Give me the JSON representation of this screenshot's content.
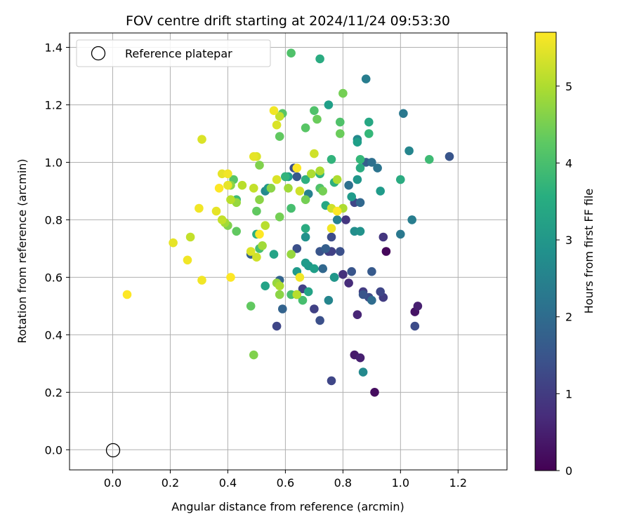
{
  "chart_data": {
    "type": "scatter",
    "title": "FOV centre drift starting at 2024/11/24 09:53:30",
    "xlabel": "Angular distance from reference (arcmin)",
    "ylabel": "Rotation from reference (arcmin)",
    "xlim": [
      -0.15,
      1.37
    ],
    "ylim": [
      -0.07,
      1.45
    ],
    "xticks": [
      "0.0",
      "0.2",
      "0.4",
      "0.6",
      "0.8",
      "1.0",
      "1.2"
    ],
    "yticks": [
      "0.0",
      "0.2",
      "0.4",
      "0.6",
      "0.8",
      "1.0",
      "1.2",
      "1.4"
    ],
    "grid": true,
    "legend": {
      "position": "top-left",
      "label": "Reference platepar"
    },
    "reference_point": {
      "x": 0.0,
      "y": 0.0
    },
    "colorbar": {
      "label": "Hours from first FF file",
      "min": 0,
      "max": 5.7,
      "ticks": [
        "0",
        "1",
        "2",
        "3",
        "4",
        "5"
      ],
      "colormap": "viridis"
    },
    "series": [
      {
        "points": [
          [
            0.95,
            0.69,
            0.1
          ],
          [
            0.91,
            0.2,
            0.2
          ],
          [
            1.05,
            0.48,
            0.3
          ],
          [
            0.84,
            0.33,
            0.4
          ],
          [
            0.86,
            0.32,
            0.5
          ],
          [
            1.06,
            0.5,
            0.5
          ],
          [
            0.85,
            0.47,
            0.6
          ],
          [
            0.82,
            0.58,
            0.7
          ],
          [
            0.8,
            0.61,
            0.8
          ],
          [
            0.94,
            0.74,
            0.9
          ],
          [
            0.81,
            0.8,
            0.9
          ],
          [
            0.75,
            0.69,
            1.0
          ],
          [
            0.87,
            0.55,
            1.0
          ],
          [
            0.94,
            0.53,
            1.0
          ],
          [
            0.76,
            0.69,
            1.1
          ],
          [
            0.7,
            0.49,
            1.1
          ],
          [
            0.66,
            0.56,
            1.1
          ],
          [
            0.76,
            0.24,
            1.2
          ],
          [
            0.93,
            0.55,
            1.2
          ],
          [
            0.84,
            0.86,
            1.2
          ],
          [
            0.57,
            0.43,
            1.2
          ],
          [
            0.89,
            0.53,
            1.3
          ],
          [
            0.76,
            0.74,
            1.3
          ],
          [
            1.05,
            0.43,
            1.3
          ],
          [
            0.72,
            0.45,
            1.4
          ],
          [
            0.64,
            0.7,
            1.4
          ],
          [
            0.63,
            0.98,
            1.4
          ],
          [
            0.79,
            0.69,
            1.4
          ],
          [
            0.72,
            0.69,
            1.5
          ],
          [
            0.83,
            0.62,
            1.5
          ],
          [
            0.87,
            0.54,
            1.5
          ],
          [
            1.17,
            1.02,
            1.5
          ],
          [
            0.9,
            0.62,
            1.6
          ],
          [
            0.64,
            0.95,
            1.6
          ],
          [
            0.48,
            0.68,
            1.7
          ],
          [
            0.88,
            1.0,
            1.7
          ],
          [
            0.74,
            0.7,
            1.7
          ],
          [
            0.58,
            0.59,
            1.8
          ],
          [
            0.59,
            0.49,
            1.8
          ],
          [
            0.77,
            0.6,
            1.9
          ],
          [
            0.73,
            0.63,
            1.9
          ],
          [
            0.86,
            0.86,
            1.9
          ],
          [
            0.9,
            0.52,
            2.0
          ],
          [
            0.82,
            0.92,
            2.1
          ],
          [
            0.9,
            1.0,
            2.1
          ],
          [
            0.92,
            0.98,
            2.2
          ],
          [
            1.0,
            0.75,
            2.3
          ],
          [
            1.01,
            1.17,
            2.3
          ],
          [
            0.88,
            1.29,
            2.4
          ],
          [
            1.04,
            0.8,
            2.4
          ],
          [
            0.78,
            0.8,
            2.5
          ],
          [
            0.68,
            0.89,
            2.5
          ],
          [
            1.03,
            1.04,
            2.6
          ],
          [
            0.75,
            0.52,
            2.6
          ],
          [
            0.85,
            1.08,
            2.7
          ],
          [
            0.53,
            0.9,
            2.7
          ],
          [
            0.87,
            0.27,
            2.7
          ],
          [
            0.84,
            0.76,
            2.8
          ],
          [
            0.64,
            0.54,
            2.8
          ],
          [
            0.67,
            0.74,
            2.9
          ],
          [
            0.6,
            0.95,
            2.9
          ],
          [
            0.86,
            0.76,
            2.9
          ],
          [
            0.77,
            0.6,
            3.0
          ],
          [
            0.54,
            0.91,
            3.0
          ],
          [
            0.68,
            0.64,
            3.0
          ],
          [
            0.85,
            0.94,
            3.0
          ],
          [
            0.67,
            0.65,
            3.1
          ],
          [
            0.93,
            0.9,
            3.1
          ],
          [
            0.83,
            0.88,
            3.1
          ],
          [
            0.64,
            0.62,
            3.1
          ],
          [
            0.61,
            0.95,
            3.2
          ],
          [
            0.75,
            1.2,
            3.2
          ],
          [
            0.7,
            0.63,
            3.2
          ],
          [
            0.85,
            1.07,
            3.2
          ],
          [
            0.56,
            0.68,
            3.3
          ],
          [
            0.68,
            0.55,
            3.3
          ],
          [
            0.53,
            0.57,
            3.3
          ],
          [
            0.74,
            0.85,
            3.4
          ],
          [
            0.89,
            1.14,
            3.4
          ],
          [
            0.72,
            1.36,
            3.5
          ],
          [
            1.0,
            0.94,
            3.5
          ],
          [
            0.86,
            0.98,
            3.5
          ],
          [
            0.67,
            0.77,
            3.5
          ],
          [
            0.5,
            0.75,
            3.6
          ],
          [
            0.77,
            0.93,
            3.6
          ],
          [
            0.67,
            0.94,
            3.6
          ],
          [
            0.72,
            0.96,
            3.7
          ],
          [
            0.6,
            0.95,
            3.7
          ],
          [
            0.76,
            1.01,
            3.7
          ],
          [
            0.86,
            1.01,
            3.8
          ],
          [
            0.89,
            1.1,
            3.8
          ],
          [
            0.43,
            0.87,
            3.9
          ],
          [
            1.1,
            1.01,
            3.9
          ],
          [
            0.66,
            0.52,
            4.0
          ],
          [
            0.51,
            0.7,
            4.0
          ],
          [
            0.62,
            0.54,
            4.0
          ],
          [
            0.62,
            0.84,
            4.0
          ],
          [
            0.62,
            1.38,
            4.1
          ],
          [
            0.7,
            1.18,
            4.1
          ],
          [
            0.79,
            1.14,
            4.1
          ],
          [
            0.72,
            0.91,
            4.1
          ],
          [
            0.59,
            1.17,
            4.2
          ],
          [
            0.42,
            0.94,
            4.2
          ],
          [
            0.67,
            1.12,
            4.2
          ],
          [
            0.58,
            1.09,
            4.3
          ],
          [
            0.43,
            0.76,
            4.3
          ],
          [
            0.48,
            0.5,
            4.3
          ],
          [
            0.5,
            0.83,
            4.3
          ],
          [
            0.71,
            1.15,
            4.4
          ],
          [
            0.79,
            1.1,
            4.4
          ],
          [
            0.67,
            0.87,
            4.5
          ],
          [
            0.73,
            0.9,
            4.5
          ],
          [
            0.58,
            0.81,
            4.5
          ],
          [
            0.8,
            1.24,
            4.5
          ],
          [
            0.49,
            0.33,
            4.6
          ],
          [
            0.4,
            0.78,
            4.6
          ],
          [
            0.51,
            0.99,
            4.6
          ],
          [
            0.55,
            0.91,
            4.7
          ],
          [
            0.41,
            0.92,
            4.7
          ],
          [
            0.58,
            0.54,
            4.7
          ],
          [
            0.51,
            0.87,
            4.7
          ],
          [
            0.62,
            0.68,
            4.8
          ],
          [
            0.57,
            0.58,
            4.8
          ],
          [
            0.43,
            0.86,
            4.8
          ],
          [
            0.52,
            0.71,
            4.9
          ],
          [
            0.61,
            0.91,
            4.9
          ],
          [
            0.39,
            0.79,
            4.9
          ],
          [
            0.78,
            0.94,
            5.0
          ],
          [
            0.69,
            0.96,
            5.0
          ],
          [
            0.58,
            0.57,
            5.0
          ],
          [
            0.72,
            0.97,
            5.0
          ],
          [
            0.8,
            0.84,
            5.0
          ],
          [
            0.64,
            0.54,
            5.1
          ],
          [
            0.41,
            0.87,
            5.1
          ],
          [
            0.53,
            0.78,
            5.1
          ],
          [
            0.45,
            0.92,
            5.1
          ],
          [
            0.38,
            0.8,
            5.2
          ],
          [
            0.58,
            1.16,
            5.2
          ],
          [
            0.27,
            0.74,
            5.2
          ],
          [
            0.49,
            0.91,
            5.2
          ],
          [
            0.5,
            0.67,
            5.3
          ],
          [
            0.76,
            0.84,
            5.3
          ],
          [
            0.7,
            1.03,
            5.3
          ],
          [
            0.65,
            0.9,
            5.3
          ],
          [
            0.48,
            0.69,
            5.4
          ],
          [
            0.57,
            1.13,
            5.4
          ],
          [
            0.31,
            1.08,
            5.4
          ],
          [
            0.5,
            1.02,
            5.4
          ],
          [
            0.57,
            0.94,
            5.4
          ],
          [
            0.38,
            0.96,
            5.5
          ],
          [
            0.36,
            0.83,
            5.5
          ],
          [
            0.4,
            0.92,
            5.5
          ],
          [
            0.49,
            1.02,
            5.5
          ],
          [
            0.21,
            0.72,
            5.5
          ],
          [
            0.3,
            0.84,
            5.6
          ],
          [
            0.31,
            0.59,
            5.6
          ],
          [
            0.56,
            1.18,
            5.6
          ],
          [
            0.26,
            0.66,
            5.6
          ],
          [
            0.76,
            0.77,
            5.6
          ],
          [
            0.65,
            0.6,
            5.6
          ],
          [
            0.4,
            0.96,
            5.6
          ],
          [
            0.41,
            0.6,
            5.7
          ],
          [
            0.64,
            0.98,
            5.7
          ],
          [
            0.51,
            0.75,
            5.7
          ],
          [
            0.37,
            0.91,
            5.7
          ],
          [
            0.78,
            0.83,
            5.7
          ],
          [
            0.05,
            0.54,
            5.7
          ]
        ]
      }
    ]
  }
}
